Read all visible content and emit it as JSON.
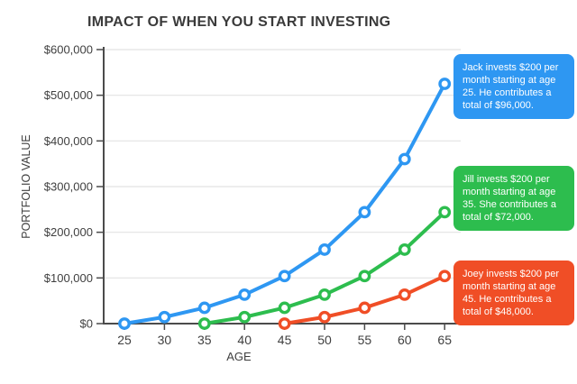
{
  "chart": {
    "title": "IMPACT OF WHEN YOU START INVESTING"
  },
  "chart_data": {
    "type": "line",
    "title": "IMPACT OF WHEN YOU START INVESTING",
    "xlabel": "AGE",
    "ylabel": "PORTFOLIO VALUE",
    "x_ticks": [
      25,
      30,
      35,
      40,
      45,
      50,
      55,
      60,
      65
    ],
    "y_tick_values": [
      0,
      100000,
      200000,
      300000,
      400000,
      500000,
      600000
    ],
    "y_tick_labels": [
      "$0",
      "$100,000",
      "$200,000",
      "$300,000",
      "$400,000",
      "$500,000",
      "$600,000"
    ],
    "ylim": [
      0,
      600000
    ],
    "grid": "horizontal",
    "legend_position": "none",
    "marker": "open-circle",
    "series": [
      {
        "name": "Jack",
        "color": "#2e97f2",
        "x": [
          25,
          30,
          35,
          40,
          45,
          50,
          55,
          60,
          65
        ],
        "values": [
          0,
          14320,
          34617,
          63391,
          104185,
          162011,
          243994,
          360214,
          525031
        ]
      },
      {
        "name": "Jill",
        "color": "#2dbd4e",
        "x": [
          35,
          40,
          45,
          50,
          55,
          60,
          65
        ],
        "values": [
          0,
          14320,
          34617,
          63391,
          104185,
          162011,
          243994
        ]
      },
      {
        "name": "Joey",
        "color": "#f04e26",
        "x": [
          45,
          50,
          55,
          60,
          65
        ],
        "values": [
          0,
          14320,
          34617,
          63391,
          104185
        ]
      }
    ]
  },
  "callouts": [
    {
      "name": "Jack",
      "color": "#2e97f2",
      "text": "Jack invests $200 per month starting at age 25. He contributes a total of $96,000."
    },
    {
      "name": "Jill",
      "color": "#2dbd4e",
      "text": "Jill invests $200 per month starting at age 35. She contributes a total of $72,000."
    },
    {
      "name": "Joey",
      "color": "#f04e26",
      "text": "Joey invests $200 per month starting at age 45. He contributes a total of $48,000."
    }
  ],
  "style": {
    "axis_color": "#4b4b4b",
    "grid_color": "#e2e2e2",
    "label_color": "#3f3f3f"
  }
}
